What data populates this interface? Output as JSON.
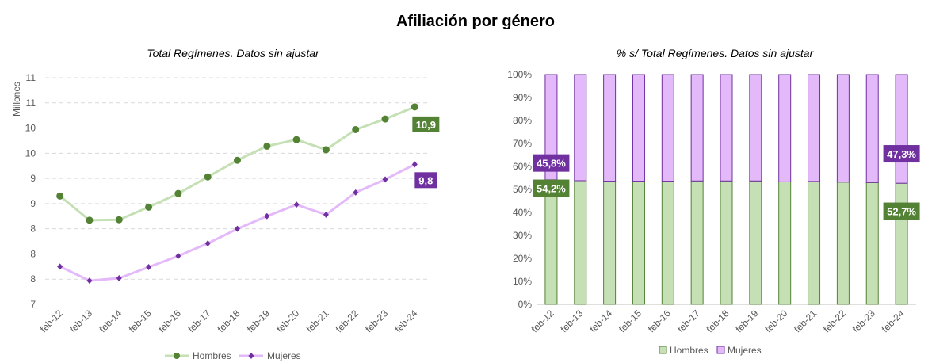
{
  "title": "Afiliación por género",
  "colors": {
    "hombres_line": "#c5e0b4",
    "hombres_marker": "#548235",
    "hombres_label_bg": "#548235",
    "mujeres_line": "#e4b9f9",
    "mujeres_marker": "#7030a0",
    "mujeres_label_bg": "#7030a0",
    "bar_hombres_fill": "#c5e0b4",
    "bar_hombres_stroke": "#548235",
    "bar_mujeres_fill": "#e4b9f9",
    "bar_mujeres_stroke": "#7030a0",
    "grid": "#d9d9d9"
  },
  "chart_data": [
    {
      "type": "line",
      "title": "Total Regímenes. Datos sin ajustar",
      "ylabel": "Millones",
      "xlabel": "",
      "categories": [
        "feb-12",
        "feb-13",
        "feb-14",
        "feb-15",
        "feb-16",
        "feb-17",
        "feb-18",
        "feb-19",
        "feb-20",
        "feb-21",
        "feb-22",
        "feb-23",
        "feb-24"
      ],
      "ylim": [
        7,
        11.5
      ],
      "y_tick_values": [
        7,
        7.5,
        8,
        8.5,
        9,
        9.5,
        10,
        10.5,
        11,
        11.5
      ],
      "y_tick_labels": [
        "7",
        "8",
        "8",
        "8",
        "9",
        "9",
        "10",
        "10",
        "11",
        "11"
      ],
      "grid": true,
      "legend_position": "bottom",
      "series": [
        {
          "name": "Hombres",
          "values": [
            9.15,
            8.67,
            8.68,
            8.93,
            9.2,
            9.53,
            9.86,
            10.14,
            10.27,
            10.07,
            10.47,
            10.68,
            10.92
          ],
          "end_label": "10,9"
        },
        {
          "name": "Mujeres",
          "values": [
            7.75,
            7.47,
            7.52,
            7.74,
            7.96,
            8.21,
            8.5,
            8.75,
            8.98,
            8.78,
            9.22,
            9.48,
            9.78
          ],
          "end_label": "9,8"
        }
      ]
    },
    {
      "type": "bar",
      "stacked": true,
      "title": "% s/ Total Regímenes. Datos sin ajustar",
      "categories": [
        "feb-12",
        "feb-13",
        "feb-14",
        "feb-15",
        "feb-16",
        "feb-17",
        "feb-18",
        "feb-19",
        "feb-20",
        "feb-21",
        "feb-22",
        "feb-23",
        "feb-24"
      ],
      "ylim": [
        0,
        100
      ],
      "y_tick_labels": [
        "0%",
        "10%",
        "20%",
        "30%",
        "40%",
        "50%",
        "60%",
        "70%",
        "80%",
        "90%",
        "100%"
      ],
      "grid": false,
      "legend_position": "bottom",
      "series": [
        {
          "name": "Hombres",
          "values": [
            54.2,
            53.8,
            53.6,
            53.6,
            53.6,
            53.7,
            53.7,
            53.7,
            53.3,
            53.5,
            53.2,
            53.0,
            52.7
          ]
        },
        {
          "name": "Mujeres",
          "values": [
            45.8,
            46.2,
            46.4,
            46.4,
            46.4,
            46.3,
            46.3,
            46.3,
            46.7,
            46.5,
            46.8,
            47.0,
            47.3
          ]
        }
      ],
      "labels": {
        "first_hombres": "54,2%",
        "first_mujeres": "45,8%",
        "last_hombres": "52,7%",
        "last_mujeres": "47,3%"
      }
    }
  ]
}
